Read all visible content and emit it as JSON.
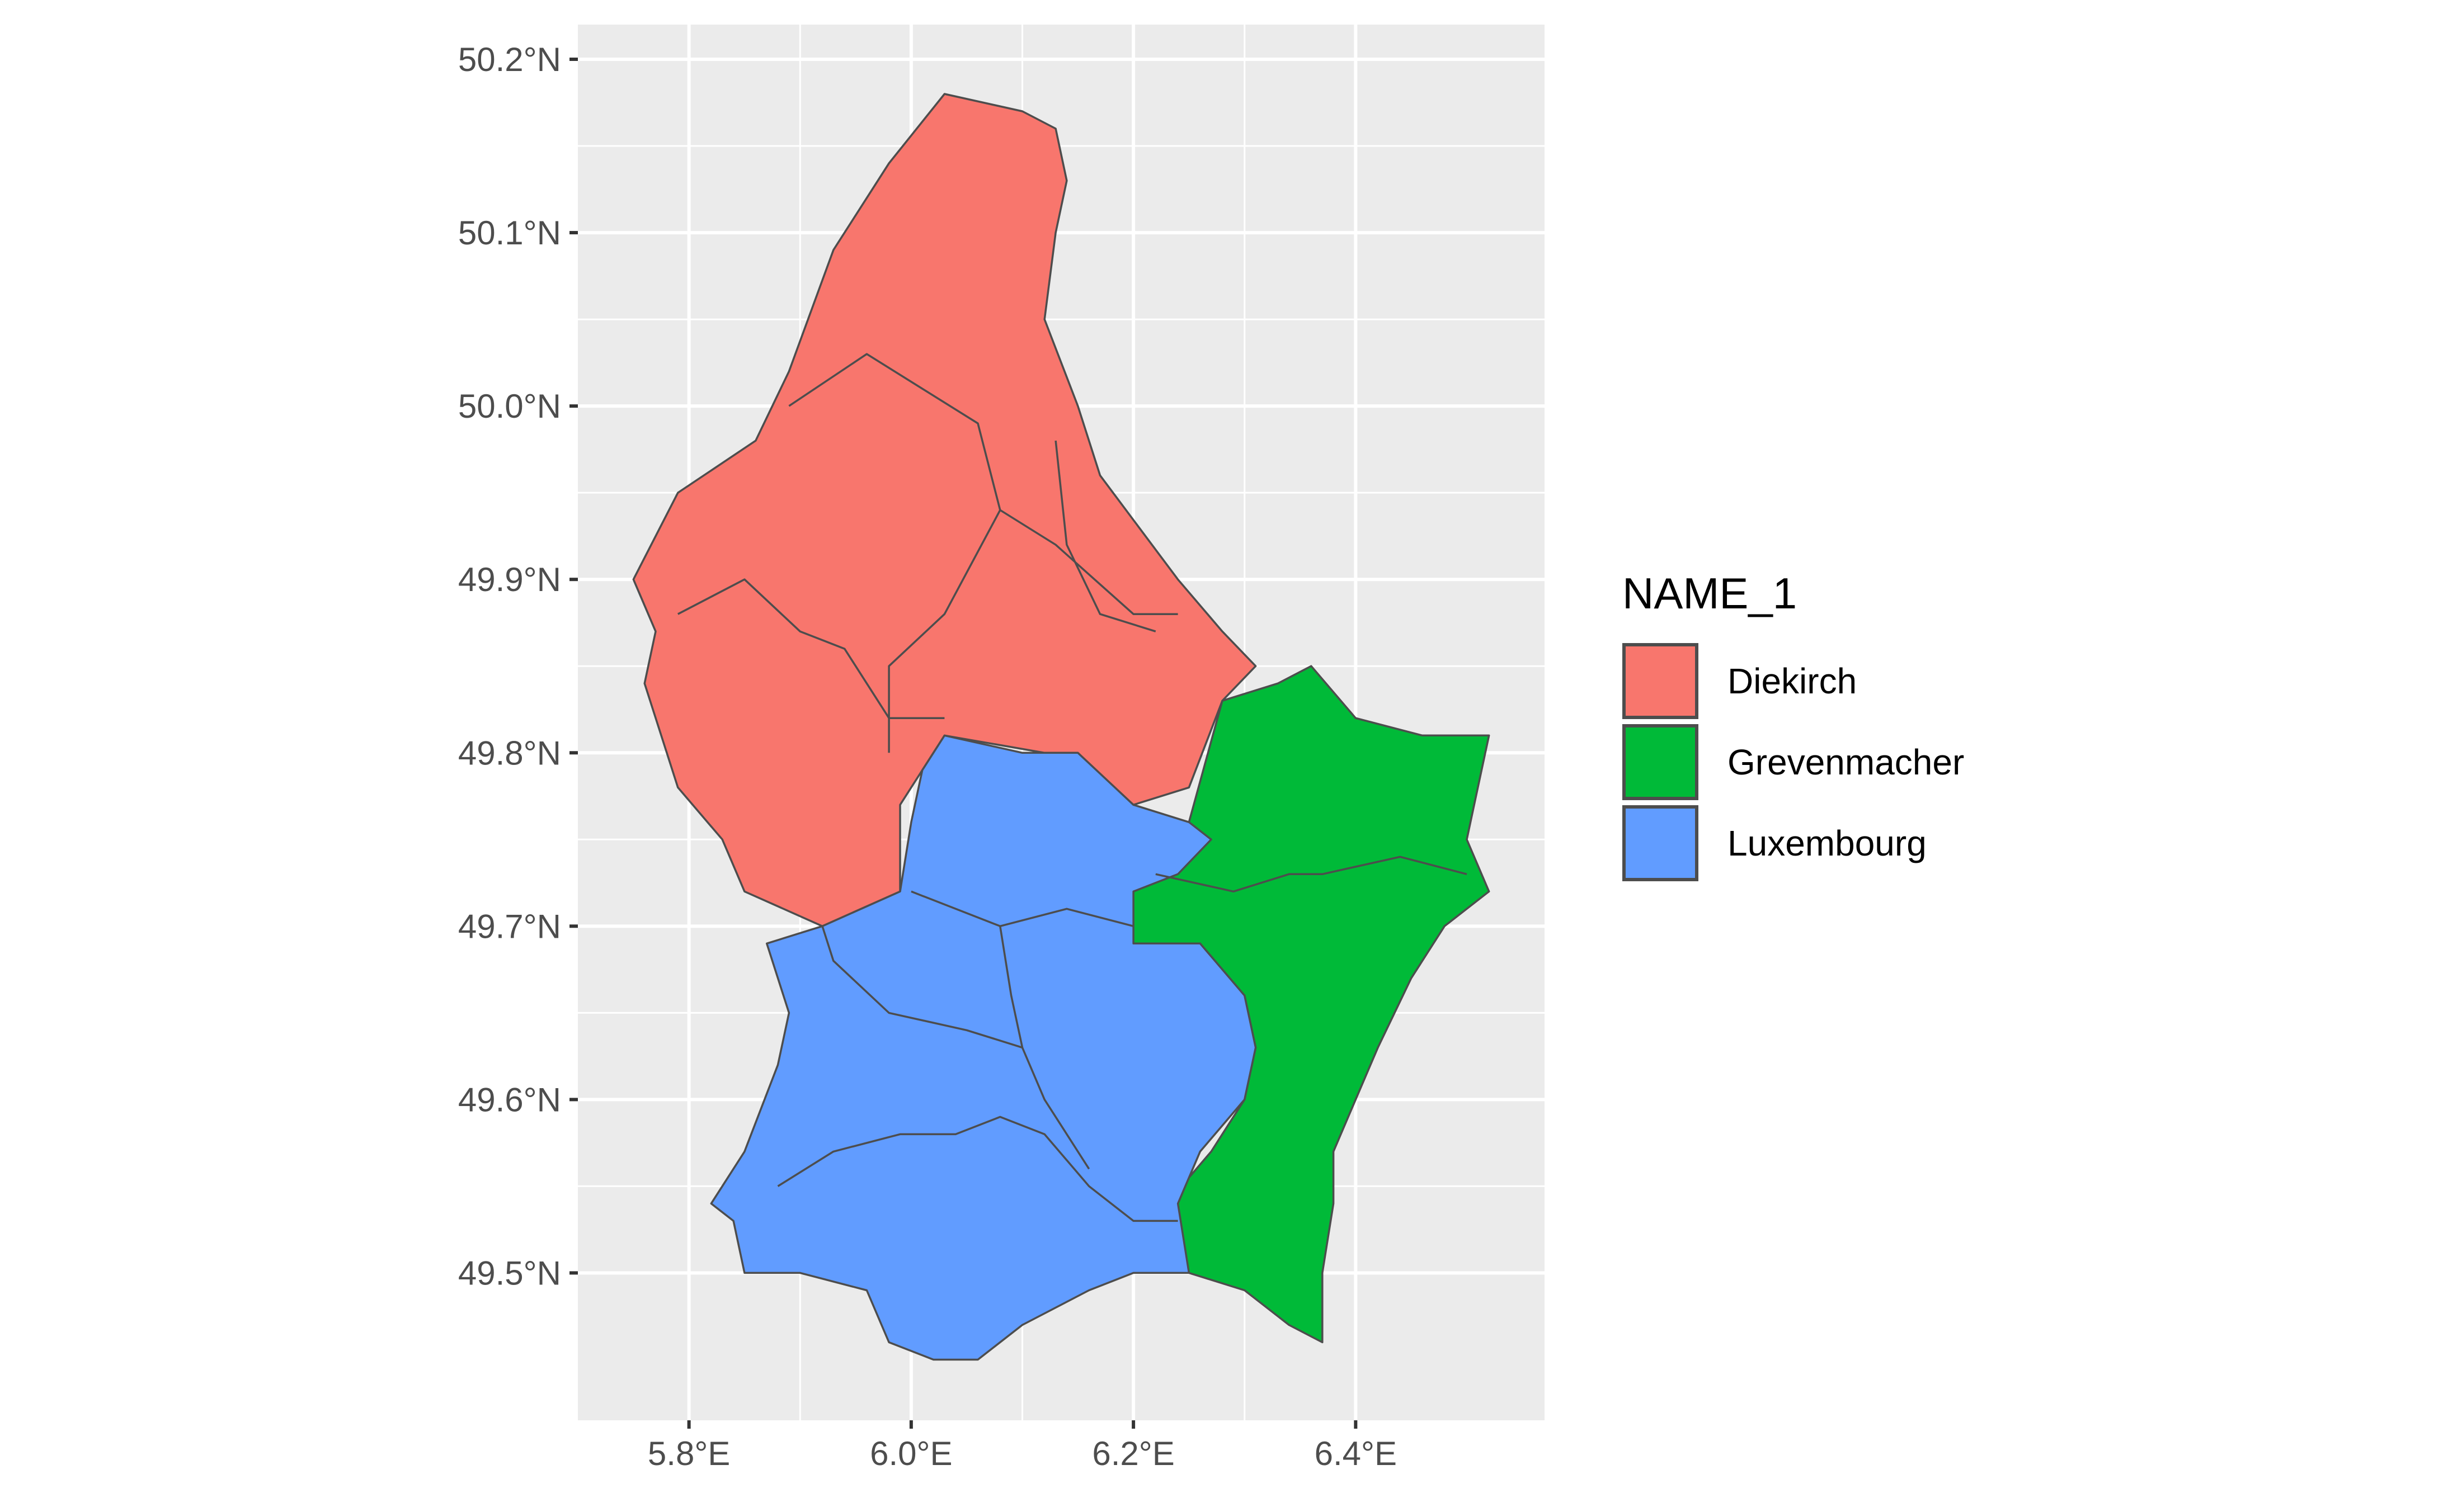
{
  "chart_data": {
    "type": "map",
    "title": "",
    "xlabel": "",
    "ylabel": "",
    "xlim": [
      5.7,
      6.57
    ],
    "ylim": [
      49.415,
      50.22
    ],
    "x_ticks": [
      {
        "value": 5.8,
        "label": "5.8°E"
      },
      {
        "value": 6.0,
        "label": "6.0°E"
      },
      {
        "value": 6.2,
        "label": "6.2°E"
      },
      {
        "value": 6.4,
        "label": "6.4°E"
      }
    ],
    "y_ticks": [
      {
        "value": 50.2,
        "label": "50.2°N"
      },
      {
        "value": 50.1,
        "label": "50.1°N"
      },
      {
        "value": 50.0,
        "label": "50.0°N"
      },
      {
        "value": 49.9,
        "label": "49.9°N"
      },
      {
        "value": 49.8,
        "label": "49.8°N"
      },
      {
        "value": 49.7,
        "label": "49.7°N"
      },
      {
        "value": 49.6,
        "label": "49.6°N"
      },
      {
        "value": 49.5,
        "label": "49.5°N"
      }
    ],
    "grid": true,
    "panel_color": "#ebebeb",
    "grid_color": "#ffffff",
    "border_color": "#4d4d4d",
    "legend": {
      "title": "NAME_1",
      "placement": "right",
      "items": [
        {
          "label": "Diekirch",
          "color": "#F8766D"
        },
        {
          "label": "Grevenmacher",
          "color": "#00BA38"
        },
        {
          "label": "Luxembourg",
          "color": "#619CFF"
        }
      ]
    },
    "districts": [
      {
        "name": "Diekirch",
        "color": "#F8766D",
        "outline": [
          [
            6.03,
            50.18
          ],
          [
            6.1,
            50.17
          ],
          [
            6.13,
            50.16
          ],
          [
            6.14,
            50.13
          ],
          [
            6.13,
            50.1
          ],
          [
            6.12,
            50.05
          ],
          [
            6.15,
            50.0
          ],
          [
            6.17,
            49.96
          ],
          [
            6.24,
            49.9
          ],
          [
            6.28,
            49.87
          ],
          [
            6.31,
            49.85
          ],
          [
            6.28,
            49.83
          ],
          [
            6.25,
            49.78
          ],
          [
            6.2,
            49.77
          ],
          [
            6.12,
            49.8
          ],
          [
            6.03,
            49.81
          ],
          [
            6.01,
            49.79
          ],
          [
            5.99,
            49.77
          ],
          [
            5.99,
            49.72
          ],
          [
            5.92,
            49.7
          ],
          [
            5.85,
            49.72
          ],
          [
            5.83,
            49.75
          ],
          [
            5.79,
            49.78
          ],
          [
            5.76,
            49.84
          ],
          [
            5.77,
            49.87
          ],
          [
            5.75,
            49.9
          ],
          [
            5.79,
            49.95
          ],
          [
            5.86,
            49.98
          ],
          [
            5.89,
            50.02
          ],
          [
            5.93,
            50.09
          ],
          [
            5.98,
            50.14
          ]
        ],
        "borders": [
          [
            [
              5.79,
              49.88
            ],
            [
              5.85,
              49.9
            ],
            [
              5.9,
              49.87
            ],
            [
              5.94,
              49.86
            ],
            [
              5.98,
              49.82
            ],
            [
              6.03,
              49.82
            ]
          ],
          [
            [
              5.89,
              50.0
            ],
            [
              5.96,
              50.03
            ],
            [
              6.01,
              50.01
            ],
            [
              6.06,
              49.99
            ],
            [
              6.08,
              49.94
            ],
            [
              6.13,
              49.92
            ],
            [
              6.2,
              49.88
            ],
            [
              6.24,
              49.88
            ]
          ],
          [
            [
              6.13,
              49.98
            ],
            [
              6.14,
              49.92
            ],
            [
              6.17,
              49.88
            ],
            [
              6.22,
              49.87
            ]
          ],
          [
            [
              6.08,
              49.94
            ],
            [
              6.03,
              49.88
            ],
            [
              5.98,
              49.85
            ],
            [
              5.98,
              49.8
            ]
          ]
        ]
      },
      {
        "name": "Grevenmacher",
        "color": "#00BA38",
        "outline": [
          [
            6.28,
            49.83
          ],
          [
            6.33,
            49.84
          ],
          [
            6.36,
            49.85
          ],
          [
            6.4,
            49.82
          ],
          [
            6.46,
            49.81
          ],
          [
            6.52,
            49.81
          ],
          [
            6.51,
            49.78
          ],
          [
            6.5,
            49.75
          ],
          [
            6.52,
            49.72
          ],
          [
            6.48,
            49.7
          ],
          [
            6.45,
            49.67
          ],
          [
            6.42,
            49.63
          ],
          [
            6.4,
            49.6
          ],
          [
            6.38,
            49.57
          ],
          [
            6.38,
            49.54
          ],
          [
            6.37,
            49.5
          ],
          [
            6.37,
            49.46
          ],
          [
            6.34,
            49.47
          ],
          [
            6.3,
            49.49
          ],
          [
            6.25,
            49.5
          ],
          [
            6.23,
            49.54
          ],
          [
            6.27,
            49.57
          ],
          [
            6.3,
            49.6
          ],
          [
            6.31,
            49.63
          ],
          [
            6.3,
            49.66
          ],
          [
            6.26,
            49.69
          ],
          [
            6.2,
            49.69
          ],
          [
            6.19,
            49.7
          ],
          [
            6.19,
            49.72
          ],
          [
            6.22,
            49.74
          ],
          [
            6.25,
            49.76
          ]
        ],
        "borders": [
          [
            [
              6.22,
              49.73
            ],
            [
              6.29,
              49.72
            ],
            [
              6.34,
              49.73
            ],
            [
              6.37,
              49.73
            ],
            [
              6.44,
              49.74
            ],
            [
              6.5,
              49.73
            ]
          ]
        ]
      },
      {
        "name": "Luxembourg",
        "color": "#619CFF",
        "outline": [
          [
            6.03,
            49.81
          ],
          [
            6.1,
            49.8
          ],
          [
            6.15,
            49.8
          ],
          [
            6.2,
            49.77
          ],
          [
            6.25,
            49.76
          ],
          [
            6.27,
            49.75
          ],
          [
            6.24,
            49.73
          ],
          [
            6.2,
            49.72
          ],
          [
            6.2,
            49.69
          ],
          [
            6.26,
            49.69
          ],
          [
            6.3,
            49.66
          ],
          [
            6.31,
            49.63
          ],
          [
            6.3,
            49.6
          ],
          [
            6.26,
            49.57
          ],
          [
            6.24,
            49.54
          ],
          [
            6.25,
            49.5
          ],
          [
            6.2,
            49.5
          ],
          [
            6.16,
            49.49
          ],
          [
            6.1,
            49.47
          ],
          [
            6.06,
            49.45
          ],
          [
            6.02,
            49.45
          ],
          [
            5.98,
            49.46
          ],
          [
            5.96,
            49.49
          ],
          [
            5.9,
            49.5
          ],
          [
            5.85,
            49.5
          ],
          [
            5.84,
            49.53
          ],
          [
            5.82,
            49.54
          ],
          [
            5.85,
            49.57
          ],
          [
            5.88,
            49.62
          ],
          [
            5.89,
            49.65
          ],
          [
            5.87,
            49.69
          ],
          [
            5.92,
            49.7
          ],
          [
            5.99,
            49.72
          ],
          [
            6.0,
            49.76
          ],
          [
            6.01,
            49.79
          ]
        ],
        "borders": [
          [
            [
              6.0,
              49.72
            ],
            [
              6.04,
              49.71
            ],
            [
              6.08,
              49.7
            ],
            [
              6.14,
              49.71
            ],
            [
              6.2,
              49.7
            ]
          ],
          [
            [
              5.92,
              49.7
            ],
            [
              5.93,
              49.68
            ],
            [
              5.98,
              49.65
            ],
            [
              6.05,
              49.64
            ],
            [
              6.1,
              49.63
            ],
            [
              6.12,
              49.6
            ],
            [
              6.16,
              49.56
            ]
          ],
          [
            [
              5.88,
              49.55
            ],
            [
              5.93,
              49.57
            ],
            [
              5.99,
              49.58
            ],
            [
              6.04,
              49.58
            ],
            [
              6.08,
              49.59
            ],
            [
              6.12,
              49.58
            ],
            [
              6.16,
              49.55
            ],
            [
              6.2,
              49.53
            ],
            [
              6.24,
              49.53
            ]
          ],
          [
            [
              6.08,
              49.7
            ],
            [
              6.09,
              49.66
            ],
            [
              6.1,
              49.63
            ]
          ]
        ]
      }
    ]
  }
}
